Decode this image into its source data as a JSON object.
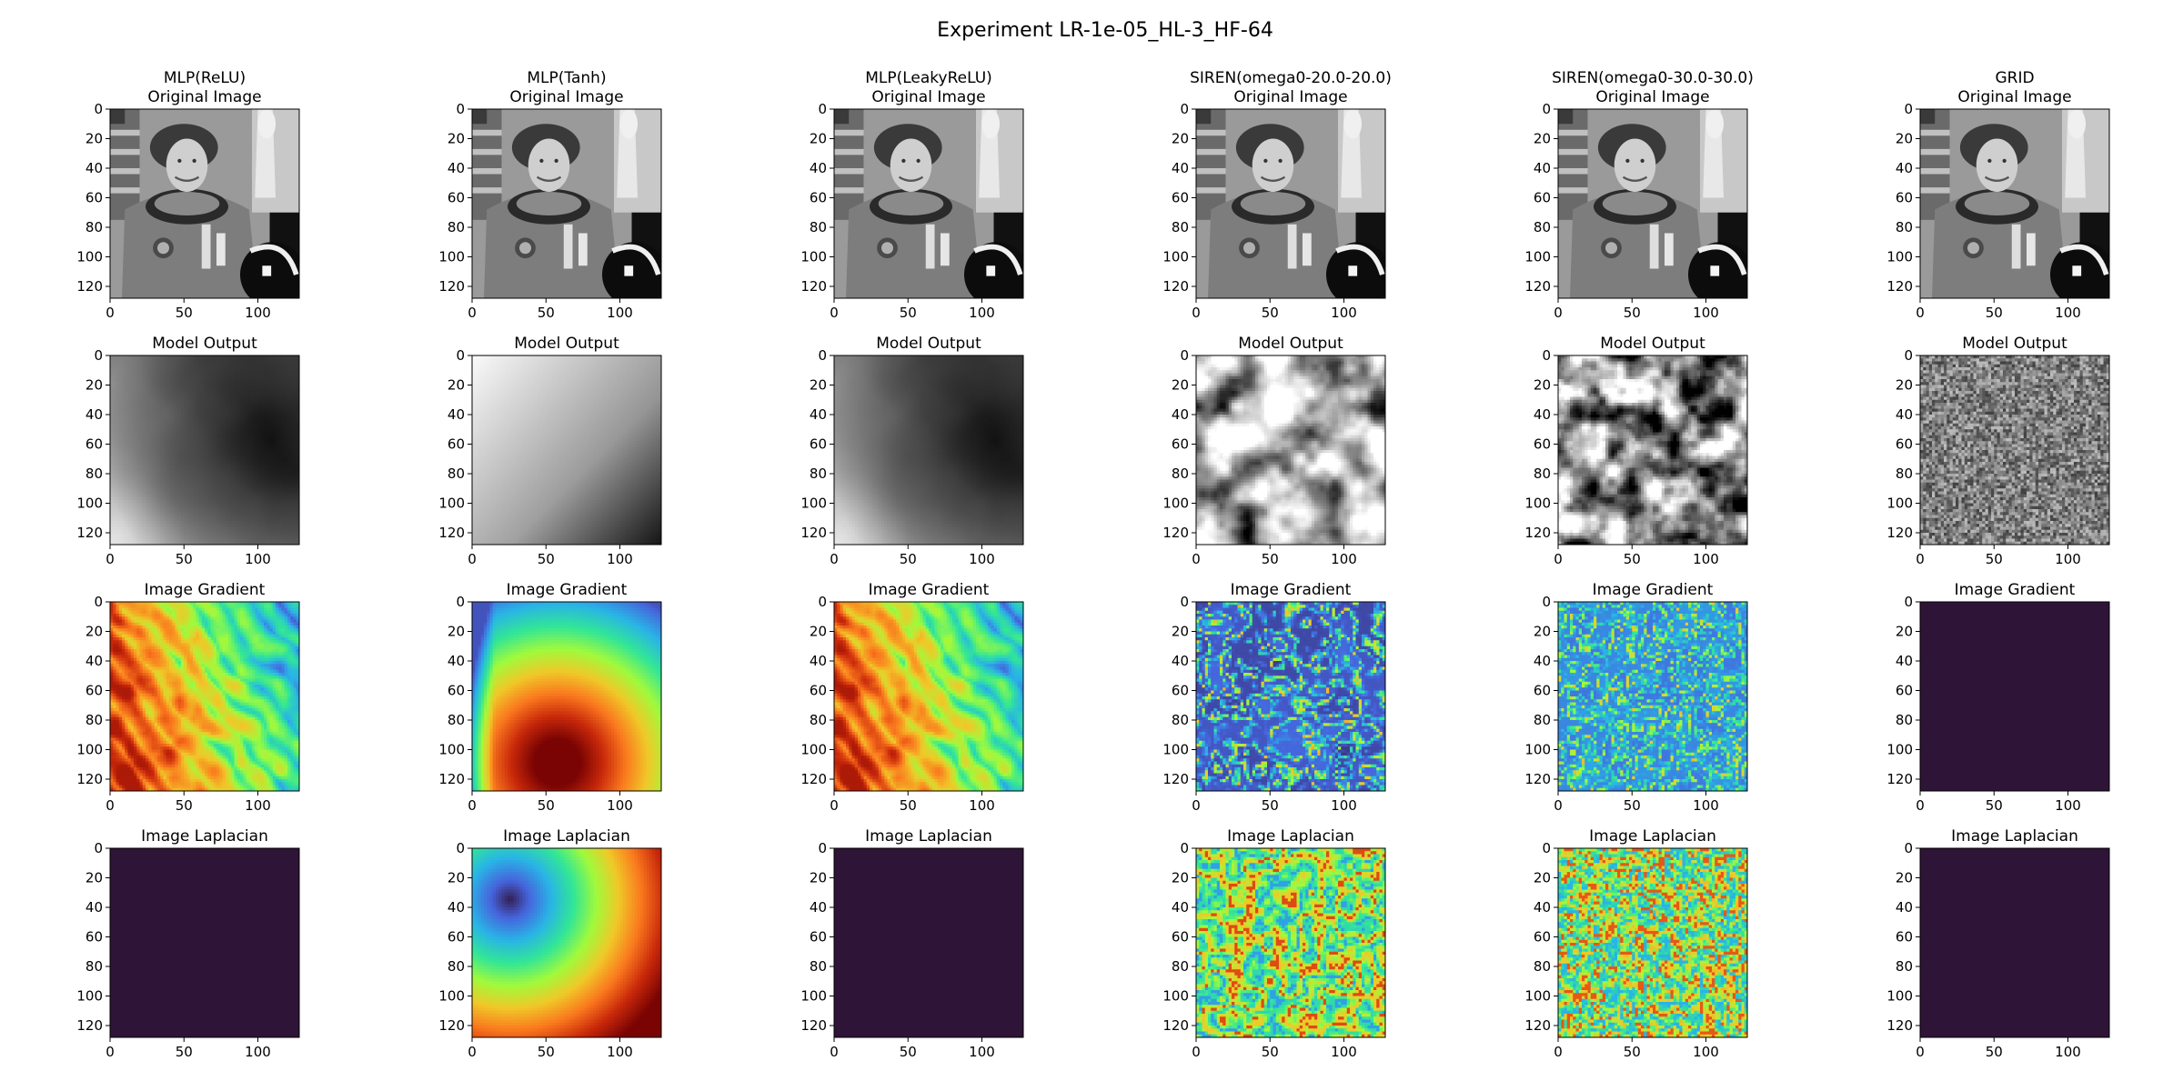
{
  "figure": {
    "suptitle": "Experiment LR-1e-05_HL-3_HF-64"
  },
  "chart_data": {
    "type": "heatmap",
    "axis": {
      "x_ticks": [
        0,
        50,
        100
      ],
      "y_ticks": [
        0,
        20,
        40,
        60,
        80,
        100,
        120
      ],
      "xlim": [
        0,
        128
      ],
      "ylim": [
        128,
        0
      ]
    },
    "columns": [
      "MLP(ReLU)",
      "MLP(Tanh)",
      "MLP(LeakyReLU)",
      "SIREN(omega0-20.0-20.0)",
      "SIREN(omega0-30.0-30.0)",
      "GRID"
    ],
    "rows": [
      "Original Image",
      "Model Output",
      "Image Gradient",
      "Image Laplacian"
    ],
    "panels": [
      [
        {
          "title": "MLP(ReLU)\nOriginal Image",
          "render": "photo",
          "colormap": "gray"
        },
        {
          "title": "MLP(Tanh)\nOriginal Image",
          "render": "photo",
          "colormap": "gray"
        },
        {
          "title": "MLP(LeakyReLU)\nOriginal Image",
          "render": "photo",
          "colormap": "gray"
        },
        {
          "title": "SIREN(omega0-20.0-20.0)\nOriginal Image",
          "render": "photo",
          "colormap": "gray"
        },
        {
          "title": "SIREN(omega0-30.0-30.0)\nOriginal Image",
          "render": "photo",
          "colormap": "gray"
        },
        {
          "title": "GRID\nOriginal Image",
          "render": "photo",
          "colormap": "gray"
        }
      ],
      [
        {
          "title": "Model Output",
          "render": "relu_output",
          "colormap": "gray"
        },
        {
          "title": "Model Output",
          "render": "tanh_output",
          "colormap": "gray"
        },
        {
          "title": "Model Output",
          "render": "relu_output",
          "colormap": "gray"
        },
        {
          "title": "Model Output",
          "render": "siren20_output",
          "colormap": "gray"
        },
        {
          "title": "Model Output",
          "render": "siren30_output",
          "colormap": "gray"
        },
        {
          "title": "Model Output",
          "render": "noise",
          "colormap": "gray"
        }
      ],
      [
        {
          "title": "Image Gradient",
          "render": "relu_gradient",
          "colormap": "turbo"
        },
        {
          "title": "Image Gradient",
          "render": "tanh_gradient",
          "colormap": "turbo"
        },
        {
          "title": "Image Gradient",
          "render": "relu_gradient",
          "colormap": "turbo"
        },
        {
          "title": "Image Gradient",
          "render": "siren20_gradient",
          "colormap": "turbo"
        },
        {
          "title": "Image Gradient",
          "render": "siren30_gradient",
          "colormap": "turbo"
        },
        {
          "title": "Image Gradient",
          "render": "flat",
          "colormap": "uniform",
          "fill_color": "#2e1437"
        }
      ],
      [
        {
          "title": "Image Laplacian",
          "render": "flat",
          "colormap": "uniform",
          "fill_color": "#2e1437"
        },
        {
          "title": "Image Laplacian",
          "render": "tanh_laplacian",
          "colormap": "turbo"
        },
        {
          "title": "Image Laplacian",
          "render": "flat",
          "colormap": "uniform",
          "fill_color": "#2e1437"
        },
        {
          "title": "Image Laplacian",
          "render": "siren20_laplacian",
          "colormap": "turbo"
        },
        {
          "title": "Image Laplacian",
          "render": "siren30_laplacian",
          "colormap": "turbo"
        },
        {
          "title": "Image Laplacian",
          "render": "flat",
          "colormap": "uniform",
          "fill_color": "#2e1437"
        }
      ]
    ]
  }
}
